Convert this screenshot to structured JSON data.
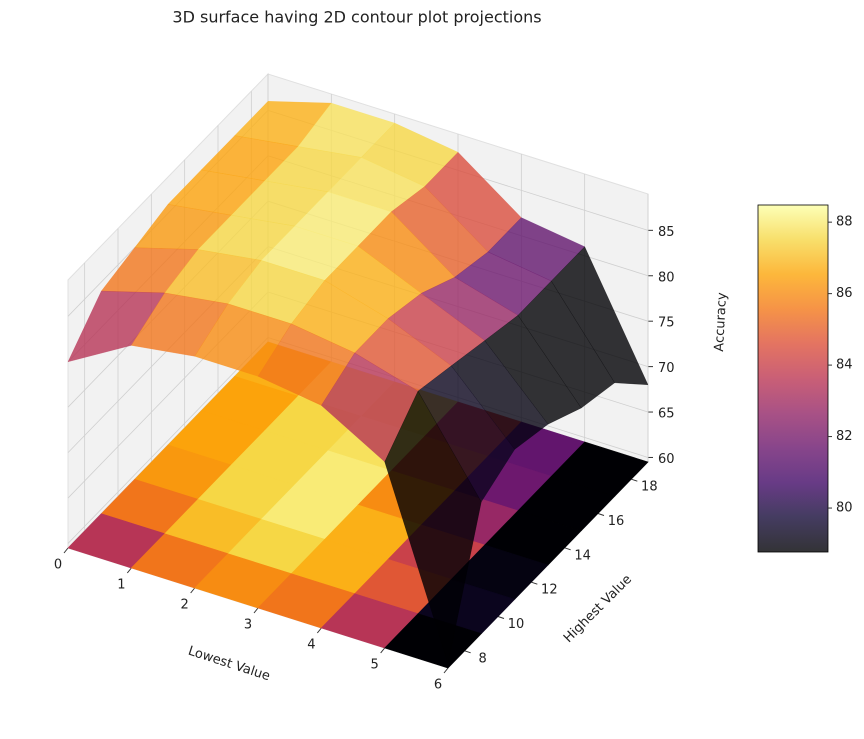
{
  "chart_data": {
    "type": "surface3d",
    "title": "3D surface having 2D contour plot projections",
    "x": [
      0,
      1,
      2,
      3,
      4,
      5,
      6
    ],
    "y": [
      7,
      9,
      11,
      13,
      15,
      17,
      19
    ],
    "z": [
      [
        80,
        84,
        85,
        86,
        86,
        86,
        86
      ],
      [
        84,
        86,
        87,
        87,
        87,
        87,
        88
      ],
      [
        85,
        87,
        88,
        88,
        88,
        88,
        88
      ],
      [
        85,
        87,
        88,
        88,
        88,
        87,
        87
      ],
      [
        84,
        86,
        86,
        85,
        83,
        82,
        82
      ],
      [
        80,
        84,
        83,
        82,
        81,
        81,
        81
      ],
      [
        60,
        74,
        76,
        75,
        73,
        72,
        68
      ]
    ],
    "xlabel": "Lowest Value",
    "ylabel": "Highest Value",
    "zlabel": "Accuracy",
    "xlim": [
      0,
      6
    ],
    "ylim": [
      7,
      19
    ],
    "zlim": [
      59.5,
      89
    ],
    "xticks": [
      0,
      1,
      2,
      3,
      4,
      5,
      6
    ],
    "yticks": [
      8,
      10,
      12,
      14,
      16,
      18
    ],
    "zticks": [
      60,
      65,
      70,
      75,
      80,
      85
    ],
    "colormap": "inferno",
    "colorbar": {
      "lim": [
        78.77,
        88.48
      ],
      "ticks": [
        80,
        82,
        84,
        86,
        88
      ]
    },
    "contour_projection": true,
    "grid": true
  }
}
